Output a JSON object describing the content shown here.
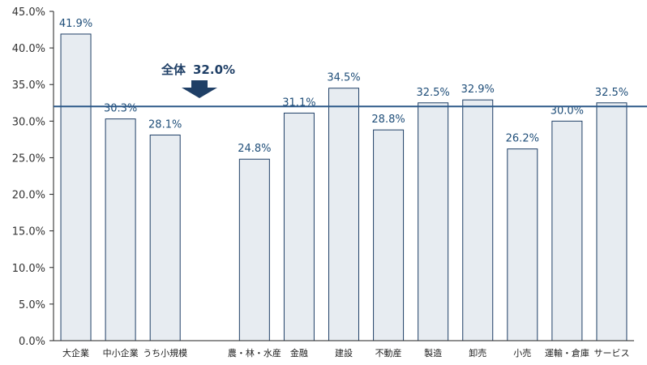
{
  "chart_data": {
    "type": "bar",
    "categories": [
      "大企業",
      "中小企業",
      "うち小規模",
      "",
      "農・林・水産",
      "金融",
      "建設",
      "不動産",
      "製造",
      "卸売",
      "小売",
      "運輸・倉庫",
      "サービス"
    ],
    "values": [
      41.9,
      30.3,
      28.1,
      null,
      24.8,
      31.1,
      34.5,
      28.8,
      32.5,
      32.9,
      26.2,
      30.0,
      32.5
    ],
    "data_labels": [
      "41.9%",
      "30.3%",
      "28.1%",
      "",
      "24.8%",
      "31.1%",
      "34.5%",
      "28.8%",
      "32.5%",
      "32.9%",
      "26.2%",
      "30.0%",
      "32.5%"
    ],
    "yticks": [
      "0.0%",
      "5.0%",
      "10.0%",
      "15.0%",
      "20.0%",
      "25.0%",
      "30.0%",
      "35.0%",
      "40.0%",
      "45.0%"
    ],
    "ylim": [
      0,
      45
    ],
    "reference_line": {
      "value": 32.0,
      "label_prefix": "全体",
      "label_value": "32.0%"
    },
    "colors": {
      "bar_fill": "#e7ecf1",
      "bar_stroke": "#1f3f66",
      "line": "#2e5a8a",
      "arrow": "#1f3f66",
      "label": "#1f4e79"
    },
    "grid": false,
    "legend": "none"
  }
}
